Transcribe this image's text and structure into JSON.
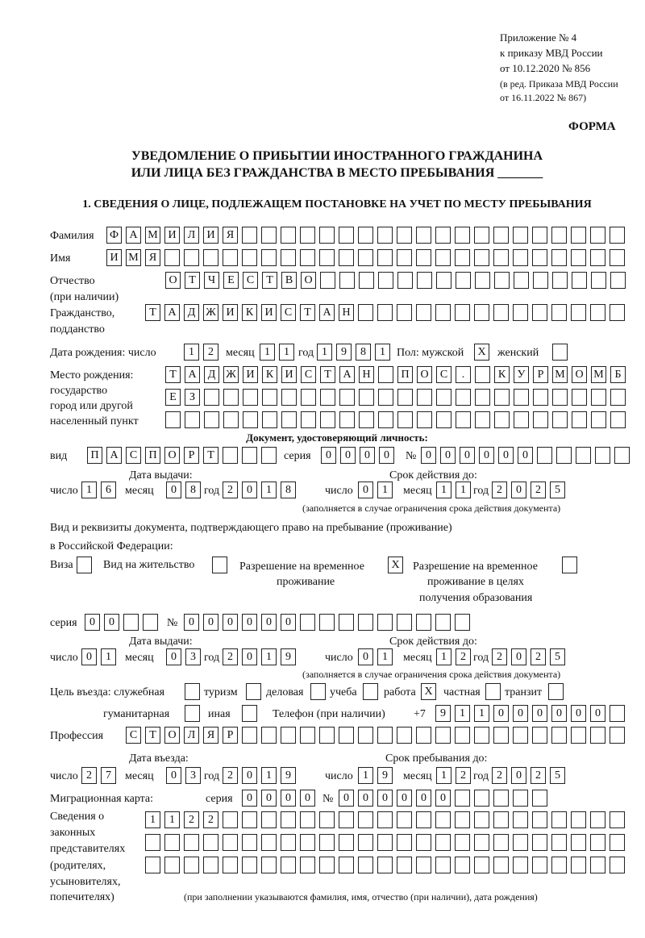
{
  "header": {
    "line1": "Приложение № 4",
    "line2": "к приказу МВД России",
    "line3": "от 10.12.2020 № 856",
    "line4": "(в ред. Приказа МВД России",
    "line5": "от 16.11.2022 № 867)",
    "forma": "ФОРМА"
  },
  "title": {
    "line1": "УВЕДОМЛЕНИЕ О ПРИБЫТИИ ИНОСТРАННОГО ГРАЖДАНИНА",
    "line2": "ИЛИ ЛИЦА БЕЗ ГРАЖДАНСТВА В МЕСТО ПРЕБЫВАНИЯ _______"
  },
  "section1": "1. СВЕДЕНИЯ О ЛИЦЕ, ПОДЛЕЖАЩЕМ ПОСТАНОВКЕ НА УЧЕТ ПО МЕСТУ ПРЕБЫВАНИЯ",
  "labels": {
    "surname": "Фамилия",
    "name": "Имя",
    "patronymic": "Отчество",
    "patronymic2": "(при наличии)",
    "citizenship": "Гражданство,",
    "citizenship2": "подданство",
    "birth_date": "Дата рождения:  число",
    "month": "месяц",
    "year": "год",
    "day": "число",
    "sex": "Пол: мужской",
    "female": "женский",
    "birthplace1": "Место рождения:",
    "birthplace2": "государство",
    "birthplace3": "город или другой",
    "birthplace4": "населенный пункт",
    "id_doc": "Документ, удостоверяющий личность:",
    "kind": "вид",
    "series": "серия",
    "number": "№",
    "issue_date": "Дата выдачи:",
    "valid_until": "Срок действия до:",
    "validity_note": "(заполняется в случае ограничения срока действия документа)",
    "stay_doc1": "Вид и реквизиты документа, подтверждающего право на пребывание (проживание)",
    "stay_doc2": "в Российской Федерации:",
    "visa": "Виза",
    "residence": "Вид на жительство",
    "trp1": "Разрешение на временное",
    "trp2": "проживание",
    "trp_edu1": "Разрешение на временное",
    "trp_edu2": "проживание в целях",
    "trp_edu3": "получения образования",
    "purpose": "Цель въезда: служебная",
    "tourism": "туризм",
    "business": "деловая",
    "study": "учеба",
    "work": "работа",
    "private": "частная",
    "transit": "транзит",
    "humanitarian": "гуманитарная",
    "other": "иная",
    "phone": "Телефон (при наличии)",
    "phone_prefix": "+7",
    "profession": "Профессия",
    "entry_date": "Дата въезда:",
    "stay_until": "Срок пребывания до:",
    "migration_card": "Миграционная карта:",
    "reps1": "Сведения о",
    "reps2": "законных",
    "reps3": "представителях",
    "reps4": "(родителях,",
    "reps5": "усыновителях,",
    "reps6": "попечителях)",
    "reps_note": "(при заполнении указываются фамилия, имя, отчество (при наличии), дата рождения)"
  },
  "fields": {
    "surname": "ФАМИЛИЯ",
    "name": "ИМЯ",
    "patronymic": "ОТЧЕСТВО",
    "citizenship": "ТАДЖИКИСТАН",
    "birth_day": "12",
    "birth_month": "11",
    "birth_year": "1981",
    "sex_male": "X",
    "sex_female": "",
    "birthplace_1": "ТАДЖИКИСТАН ПОС. КУРМОМБ",
    "birthplace_2": "ЕЗ",
    "birthplace_3": "",
    "id_kind": "ПАСПОРТ",
    "id_series": "0000",
    "id_number": "000000",
    "id_issue_day": "16",
    "id_issue_month": "08",
    "id_issue_year": "2018",
    "id_valid_day": "01",
    "id_valid_month": "11",
    "id_valid_year": "2025",
    "visa": "",
    "residence": "",
    "trp": "X",
    "trp_edu": "",
    "stay_series": "00",
    "stay_number": "000000",
    "stay_issue_day": "01",
    "stay_issue_month": "03",
    "stay_issue_year": "2019",
    "stay_valid_day": "01",
    "stay_valid_month": "12",
    "stay_valid_year": "2025",
    "p_service": "",
    "p_tourism": "",
    "p_business": "",
    "p_study": "",
    "p_work": "X",
    "p_private": "",
    "p_transit": "",
    "p_humanitarian": "",
    "p_other": "",
    "phone": "911000000",
    "profession": "СТОЛЯР",
    "entry_day": "27",
    "entry_month": "03",
    "entry_year": "2019",
    "until_day": "19",
    "until_month": "12",
    "until_year": "2025",
    "mc_series": "0000",
    "mc_number": "000000",
    "reps_1": "1122",
    "reps_2": "",
    "reps_3": ""
  }
}
